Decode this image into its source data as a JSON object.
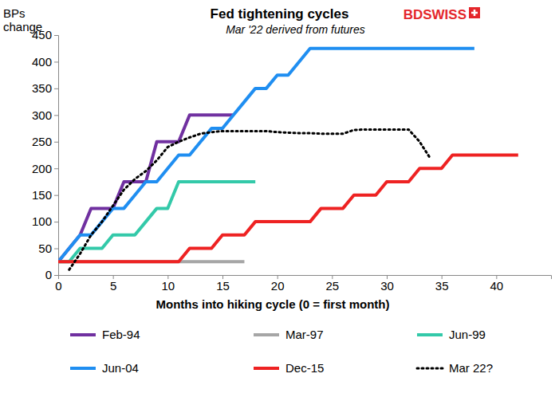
{
  "chart_data": {
    "type": "line",
    "title": "Fed tightening cycles",
    "subtitle": "Mar '22 derived from futures",
    "ylabel": "BPs change",
    "xlabel": "Months into hiking cycle (0 = first month)",
    "annotations": [
      "BDSWISS"
    ],
    "xlim": [
      0,
      45
    ],
    "xticks": [
      0,
      5,
      10,
      15,
      20,
      25,
      30,
      35,
      40
    ],
    "ylim": [
      0,
      450
    ],
    "yticks": [
      0,
      50,
      100,
      150,
      200,
      250,
      300,
      350,
      400,
      450
    ],
    "grid": false,
    "legend": "bottom",
    "series": [
      {
        "name": "Feb-94",
        "color": "#7030a0",
        "line_style": "solid",
        "x": [
          0,
          1,
          2,
          3,
          4,
          5,
          6,
          7,
          8,
          9,
          10,
          11,
          12,
          13,
          14,
          15,
          16
        ],
        "values": [
          25,
          50,
          75,
          125,
          125,
          125,
          175,
          175,
          175,
          250,
          250,
          250,
          300,
          300,
          300,
          300,
          300
        ]
      },
      {
        "name": "Mar-97",
        "color": "#a6a6a6",
        "line_style": "solid",
        "x": [
          0,
          1,
          2,
          3,
          4,
          5,
          6,
          7,
          8,
          9,
          10,
          11,
          12,
          13,
          14,
          15,
          16,
          17
        ],
        "values": [
          25,
          25,
          25,
          25,
          25,
          25,
          25,
          25,
          25,
          25,
          25,
          25,
          25,
          25,
          25,
          25,
          25,
          25
        ]
      },
      {
        "name": "Jun-99",
        "color": "#33c9a9",
        "line_style": "solid",
        "x": [
          0,
          1,
          2,
          3,
          4,
          5,
          6,
          7,
          8,
          9,
          10,
          11,
          12,
          13,
          14,
          15,
          16,
          17,
          18
        ],
        "values": [
          25,
          25,
          50,
          50,
          50,
          75,
          75,
          75,
          100,
          125,
          125,
          175,
          175,
          175,
          175,
          175,
          175,
          175,
          175
        ]
      },
      {
        "name": "Jun-04",
        "color": "#1f8ef1",
        "line_style": "solid",
        "x": [
          0,
          1,
          2,
          3,
          4,
          5,
          6,
          7,
          8,
          9,
          10,
          11,
          12,
          13,
          14,
          15,
          16,
          17,
          18,
          19,
          20,
          21,
          22,
          23,
          24,
          25,
          26,
          27,
          28,
          29,
          30,
          31,
          32,
          33,
          34,
          35,
          36,
          37,
          38
        ],
        "values": [
          25,
          50,
          75,
          75,
          100,
          125,
          125,
          150,
          175,
          175,
          200,
          225,
          225,
          250,
          275,
          275,
          300,
          325,
          350,
          350,
          375,
          375,
          400,
          425,
          425,
          425,
          425,
          425,
          425,
          425,
          425,
          425,
          425,
          425,
          425,
          425,
          425,
          425,
          425
        ]
      },
      {
        "name": "Dec-15",
        "color": "#ee2222",
        "line_style": "solid",
        "x": [
          0,
          1,
          2,
          3,
          4,
          5,
          6,
          7,
          8,
          9,
          10,
          11,
          12,
          13,
          14,
          15,
          16,
          17,
          18,
          19,
          20,
          21,
          22,
          23,
          24,
          25,
          26,
          27,
          28,
          29,
          30,
          31,
          32,
          33,
          34,
          35,
          36,
          37,
          38,
          39,
          40,
          41,
          42
        ],
        "values": [
          25,
          25,
          25,
          25,
          25,
          25,
          25,
          25,
          25,
          25,
          25,
          25,
          50,
          50,
          50,
          75,
          75,
          75,
          100,
          100,
          100,
          100,
          100,
          100,
          125,
          125,
          125,
          150,
          150,
          150,
          175,
          175,
          175,
          200,
          200,
          200,
          225,
          225,
          225,
          225,
          225,
          225,
          225
        ]
      },
      {
        "name": "Mar 22?",
        "color": "#000000",
        "line_style": "dotted",
        "x": [
          1,
          2,
          3,
          4,
          5,
          6,
          7,
          8,
          9,
          10,
          11,
          12,
          13,
          14,
          15,
          16,
          17,
          18,
          19,
          20,
          21,
          22,
          23,
          24,
          25,
          26,
          27,
          28,
          29,
          30,
          31,
          32,
          33,
          34
        ],
        "values": [
          10,
          40,
          75,
          100,
          130,
          160,
          180,
          195,
          215,
          240,
          250,
          258,
          265,
          268,
          270,
          270,
          270,
          270,
          270,
          268,
          267,
          266,
          266,
          265,
          265,
          265,
          272,
          273,
          273,
          273,
          273,
          273,
          250,
          218
        ]
      }
    ]
  }
}
